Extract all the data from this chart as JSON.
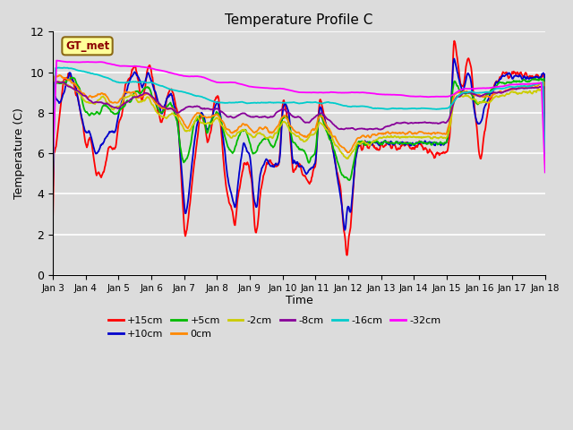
{
  "title": "Temperature Profile C",
  "xlabel": "Time",
  "ylabel": "Temperature (C)",
  "ylim": [
    0,
    12
  ],
  "yticks": [
    0,
    2,
    4,
    6,
    8,
    10,
    12
  ],
  "xtick_labels": [
    "Jan 3",
    "Jan 4",
    "Jan 5",
    "Jan 6",
    "Jan 7",
    "Jan 8",
    "Jan 9",
    "Jan 10",
    "Jan 11",
    "Jan 12",
    "Jan 13",
    "Jan 14",
    "Jan 15",
    "Jan 16",
    "Jan 17",
    "Jan 18"
  ],
  "legend_label": "GT_met",
  "series_labels": [
    "+15cm",
    "+10cm",
    "+5cm",
    "0cm",
    "-2cm",
    "-8cm",
    "-16cm",
    "-32cm"
  ],
  "series_colors": [
    "#FF0000",
    "#0000CC",
    "#00BB00",
    "#FF8800",
    "#CCCC00",
    "#880099",
    "#00CCCC",
    "#FF00FF"
  ],
  "background_color": "#DCDCDC",
  "plot_bg": "#E0E0E0",
  "n_points": 960
}
